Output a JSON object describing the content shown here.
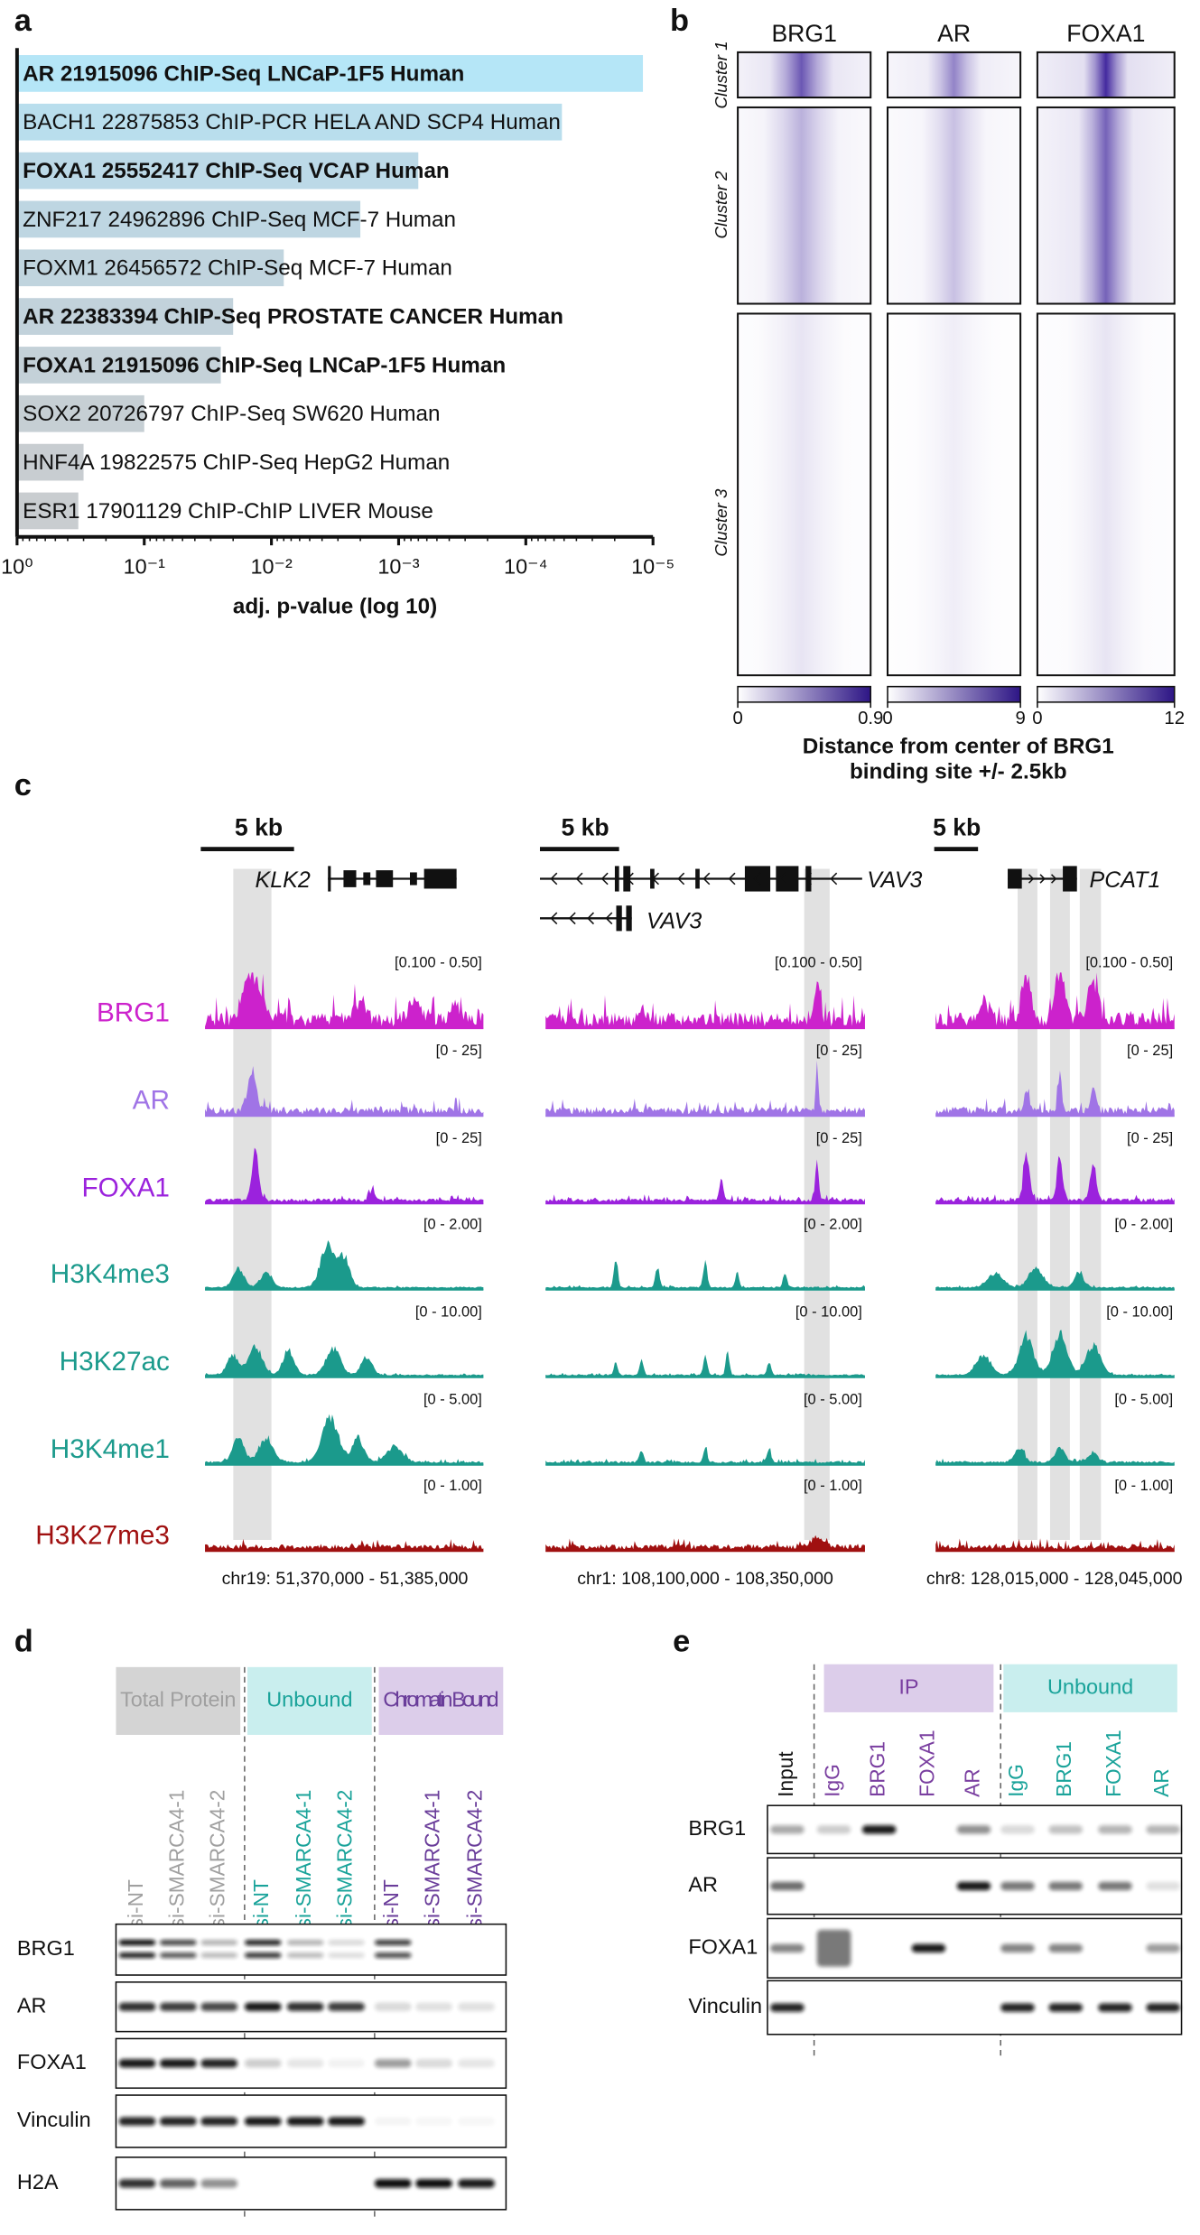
{
  "panel_a": {
    "label": "a",
    "type": "bar",
    "orientation": "horizontal",
    "log_scale": true,
    "categories": [
      "AR 21915096 ChIP-Seq LNCaP-1F5 Human",
      "BACH1 22875853 ChIP-PCR HELA AND SCP4 Human",
      "FOXA1 25552417 ChIP-Seq VCAP Human",
      "ZNF217 24962896 ChIP-Seq MCF-7 Human",
      "FOXM1 26456572 ChIP-Seq MCF-7 Human",
      "AR 22383394 ChIP-Seq PROSTATE CANCER Human",
      "FOXA1 21915096 ChIP-Seq LNCaP-1F5 Human",
      "SOX2 20726797 ChIP-Seq SW620 Human",
      "HNF4A 19822575 ChIP-Seq HepG2 Human",
      "ESR1 17901129 ChIP-ChIP LIVER Mouse"
    ],
    "values": [
      1.2e-05,
      5.2e-05,
      0.0007,
      0.002,
      0.008,
      0.02,
      0.025,
      0.1,
      0.3,
      0.33
    ],
    "bold": [
      true,
      false,
      true,
      false,
      false,
      true,
      true,
      false,
      false,
      false
    ],
    "colors": [
      "#b5e6f7",
      "#b9deed",
      "#bcd9e7",
      "#bed6e2",
      "#c0d4de",
      "#c2d2db",
      "#c4d1d8",
      "#c6cfd4",
      "#c8cdd1",
      "#c9cdd0"
    ],
    "xlim": [
      1,
      1e-05
    ],
    "xticks": [
      {
        "value": 1,
        "label": "10⁰"
      },
      {
        "value": 0.1,
        "label": "10⁻¹"
      },
      {
        "value": 0.01,
        "label": "10⁻²"
      },
      {
        "value": 0.001,
        "label": "10⁻³"
      },
      {
        "value": 0.0001,
        "label": "10⁻⁴"
      },
      {
        "value": 1e-05,
        "label": "10⁻⁵"
      }
    ],
    "xlabel": "adj. p-value (log 10)"
  },
  "panel_b": {
    "label": "b",
    "columns": [
      "BRG1",
      "AR",
      "FOXA1"
    ],
    "clusters": [
      "Cluster 1",
      "Cluster 2",
      "Cluster 3"
    ],
    "colorbars": [
      {
        "lim": [
          0,
          0.9
        ],
        "ticks": [
          0,
          0.9
        ]
      },
      {
        "lim": [
          0,
          9
        ],
        "ticks": [
          0,
          9
        ]
      },
      {
        "lim": [
          0,
          12
        ],
        "ticks": [
          0,
          12
        ]
      }
    ],
    "caption": [
      "Distance from center of BRG1",
      "binding site +/- 2.5kb"
    ]
  },
  "panel_c": {
    "label": "c",
    "scale_bars": [
      "5 kb",
      "5 kb",
      "5 kb"
    ],
    "genes": [
      "KLK2",
      "VAV3",
      "VAV3",
      "PCAT1"
    ],
    "tracks": [
      {
        "name": "BRG1",
        "ranges": [
          "[0.100 - 0.50]",
          "[0.100 - 0.50]",
          "[0.100 - 0.50]"
        ]
      },
      {
        "name": "AR",
        "ranges": [
          "[0 - 25]",
          "[0 - 25]",
          "[0 - 25]"
        ]
      },
      {
        "name": "FOXA1",
        "ranges": [
          "[0 - 25]",
          "[0 - 25]",
          "[0 - 25]"
        ]
      },
      {
        "name": "H3K4me3",
        "ranges": [
          "[0 - 2.00]",
          "[0 - 2.00]",
          "[0 - 2.00]"
        ]
      },
      {
        "name": "H3K27ac",
        "ranges": [
          "[0 - 10.00]",
          "[0 - 10.00]",
          "[0 - 10.00]"
        ]
      },
      {
        "name": "H3K4me1",
        "ranges": [
          "[0 - 5.00]",
          "[0 - 5.00]",
          "[0 - 5.00]"
        ]
      },
      {
        "name": "H3K27me3",
        "ranges": [
          "[0 - 1.00]",
          "[0 - 1.00]",
          "[0 - 1.00]"
        ]
      }
    ],
    "coordinates": [
      "chr19: 51,370,000 - 51,385,000",
      "chr1: 108,100,000 - 108,350,000",
      "chr8: 128,015,000 - 128,045,000"
    ]
  },
  "panel_d": {
    "label": "d",
    "groups": [
      "Total Protein",
      "Unbound",
      "Chromatin Bound"
    ],
    "lanes": [
      "si-NT",
      "si-SMARCA4-1",
      "si-SMARCA4-2",
      "si-NT",
      "si-SMARCA4-1",
      "si-SMARCA4-2",
      "si-NT",
      "si-SMARCA4-1",
      "si-SMARCA4-2"
    ],
    "rows": [
      "BRG1",
      "AR",
      "FOXA1",
      "Vinculin",
      "H2A"
    ]
  },
  "panel_e": {
    "label": "e",
    "groups": [
      "IP",
      "Unbound"
    ],
    "lanes": [
      "Input",
      "IgG",
      "BRG1",
      "FOXA1",
      "AR",
      "IgG",
      "BRG1",
      "FOXA1",
      "AR"
    ],
    "rows": [
      "BRG1",
      "AR",
      "FOXA1",
      "Vinculin"
    ]
  }
}
